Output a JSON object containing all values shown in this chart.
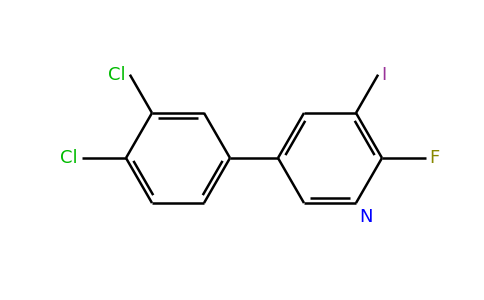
{
  "background_color": "#ffffff",
  "bond_color": "#000000",
  "bond_width": 1.8,
  "atom_colors": {
    "Cl": "#00bb00",
    "N": "#0000ff",
    "F": "#888800",
    "I": "#993399"
  },
  "figsize": [
    4.84,
    3.0
  ],
  "dpi": 100
}
